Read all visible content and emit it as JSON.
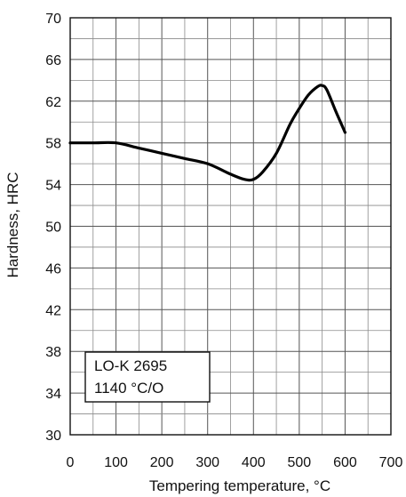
{
  "chart_data": {
    "type": "line",
    "xlabel": "Tempering temperature, °C",
    "ylabel": "Hardness, HRC",
    "xlim": [
      0,
      700
    ],
    "ylim": [
      30,
      70
    ],
    "x_major_ticks": [
      0,
      100,
      200,
      300,
      400,
      500,
      600,
      700
    ],
    "y_major_ticks": [
      30,
      34,
      38,
      42,
      46,
      50,
      54,
      58,
      62,
      66,
      70
    ],
    "x_minor_step": 50,
    "y_minor_step": 2,
    "grid": true,
    "legend_placement": "bottom-left",
    "annotation": [
      "LO-K 2695",
      "1140 °C/O"
    ],
    "series": [
      {
        "color": "#000000",
        "x": [
          0,
          50,
          100,
          150,
          200,
          250,
          300,
          350,
          380,
          400,
          420,
          450,
          480,
          500,
          520,
          540,
          550,
          560,
          580,
          600
        ],
        "y": [
          58,
          58,
          58,
          57.5,
          57,
          56.5,
          56,
          55,
          54.5,
          54.5,
          55.2,
          57,
          59.8,
          61.3,
          62.6,
          63.4,
          63.5,
          63.1,
          61,
          59
        ]
      }
    ]
  }
}
